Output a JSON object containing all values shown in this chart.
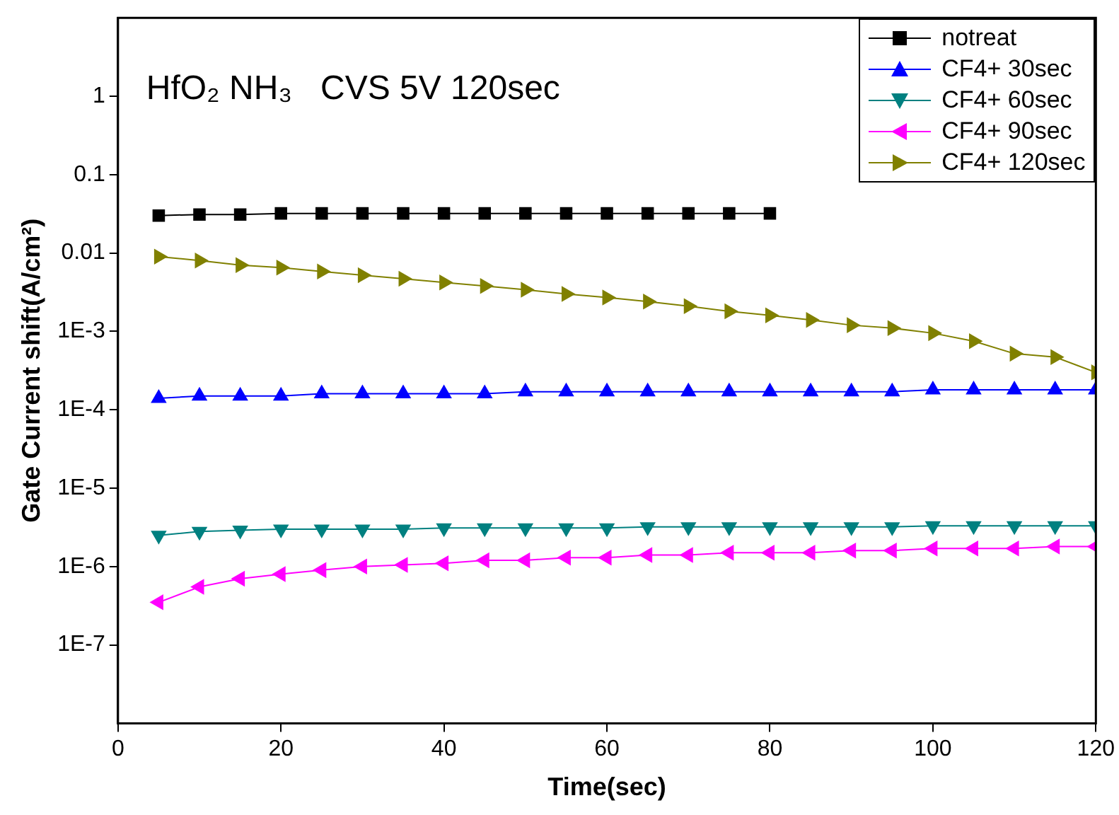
{
  "chart_data": {
    "type": "line",
    "xlabel": "Time(sec)",
    "ylabel": "Gate Current shift(A/cm²)",
    "annotations": [
      "HfO₂ NH₃   CVS 5V 120sec"
    ],
    "x": [
      5,
      10,
      15,
      20,
      25,
      30,
      35,
      40,
      45,
      50,
      55,
      60,
      65,
      70,
      75,
      80,
      85,
      90,
      95,
      100,
      105,
      110,
      115,
      120
    ],
    "series": [
      {
        "name": "notreat",
        "color": "#000000",
        "marker": "square",
        "values": [
          0.03,
          0.031,
          0.031,
          0.032,
          0.032,
          0.032,
          0.032,
          0.032,
          0.032,
          0.032,
          0.032,
          0.032,
          0.032,
          0.032,
          0.032,
          0.032,
          null,
          null,
          null,
          null,
          null,
          null,
          null,
          null
        ]
      },
      {
        "name": "CF4+ 30sec",
        "color": "#0000ff",
        "marker": "triangle",
        "values": [
          0.00014,
          0.00015,
          0.00015,
          0.00015,
          0.00016,
          0.00016,
          0.00016,
          0.00016,
          0.00016,
          0.00017,
          0.00017,
          0.00017,
          0.00017,
          0.00017,
          0.00017,
          0.00017,
          0.00017,
          0.00017,
          0.00017,
          0.00018,
          0.00018,
          0.00018,
          0.00018,
          0.00018
        ]
      },
      {
        "name": "CF4+ 60sec",
        "color": "#008080",
        "marker": "triangle",
        "values": [
          2.5e-06,
          2.8e-06,
          2.9e-06,
          3e-06,
          3e-06,
          3e-06,
          3e-06,
          3.1e-06,
          3.1e-06,
          3.1e-06,
          3.1e-06,
          3.1e-06,
          3.2e-06,
          3.2e-06,
          3.2e-06,
          3.2e-06,
          3.2e-06,
          3.2e-06,
          3.2e-06,
          3.3e-06,
          3.3e-06,
          3.3e-06,
          3.3e-06,
          3.3e-06
        ]
      },
      {
        "name": "CF4+ 90sec",
        "color": "#ff00ff",
        "marker": "triangle",
        "values": [
          3.5e-07,
          5.5e-07,
          7e-07,
          8e-07,
          9e-07,
          1e-06,
          1.05e-06,
          1.1e-06,
          1.2e-06,
          1.2e-06,
          1.3e-06,
          1.3e-06,
          1.4e-06,
          1.4e-06,
          1.5e-06,
          1.5e-06,
          1.5e-06,
          1.6e-06,
          1.6e-06,
          1.7e-06,
          1.7e-06,
          1.7e-06,
          1.8e-06,
          1.8e-06
        ]
      },
      {
        "name": "CF4+ 120sec",
        "color": "#808000",
        "marker": "triangle",
        "values": [
          0.009,
          0.008,
          0.007,
          0.0065,
          0.0058,
          0.0052,
          0.0047,
          0.0042,
          0.0038,
          0.0034,
          0.003,
          0.0027,
          0.0024,
          0.0021,
          0.0018,
          0.0016,
          0.0014,
          0.0012,
          0.0011,
          0.00095,
          0.00075,
          0.00052,
          0.00047,
          0.0003
        ]
      }
    ],
    "xlim": [
      0,
      120
    ],
    "xticks": [
      0,
      20,
      40,
      60,
      80,
      100,
      120
    ],
    "log": "y",
    "ylim": [
      1e-08,
      10
    ],
    "yticks": [
      {
        "value": 1e-07,
        "label": "1E-7"
      },
      {
        "value": 1e-06,
        "label": "1E-6"
      },
      {
        "value": 1e-05,
        "label": "1E-5"
      },
      {
        "value": 0.0001,
        "label": "1E-4"
      },
      {
        "value": 0.001,
        "label": "1E-3"
      },
      {
        "value": 0.01,
        "label": "0.01"
      },
      {
        "value": 0.1,
        "label": "0.1"
      },
      {
        "value": 1,
        "label": "1"
      }
    ],
    "grid": false,
    "legend": "top right",
    "line_style": "solid"
  }
}
